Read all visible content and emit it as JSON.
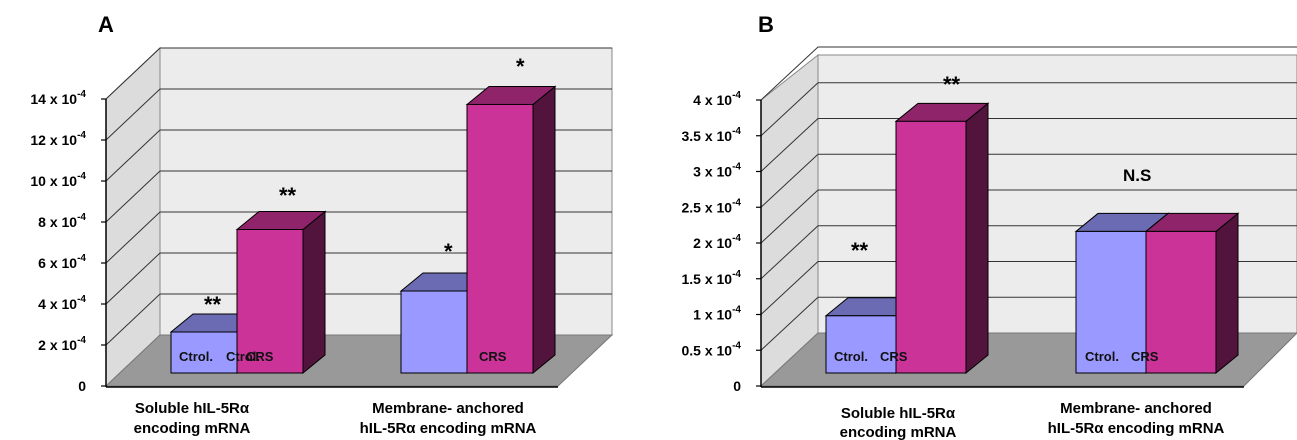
{
  "chart_data": [
    {
      "type": "bar",
      "panel": "A",
      "categories": [
        "Soluble hIL-5Rα encoding mRNA",
        "Membrane- anchored hIL-5Rα encoding mRNA"
      ],
      "category_lines": [
        [
          "Soluble hIL-5Rα",
          "encoding mRNA"
        ],
        [
          "Membrane- anchored",
          "hIL-5Rα encoding mRNA"
        ]
      ],
      "series": [
        {
          "values": [
            0.0002,
            0.0004
          ],
          "color": "#9999ff",
          "bar_labels": [
            "Ctrol.",
            ""
          ]
        },
        {
          "values": [
            0.0007,
            0.00131
          ],
          "color": "#cc3399",
          "bar_labels": [
            "CRS",
            "CRS"
          ]
        }
      ],
      "annotations": [
        "**",
        "*",
        "**",
        "*"
      ],
      "yticks": [
        "0",
        "2 x 10-4",
        "4 x 10-4",
        "6 x 10-4",
        "8 x 10-4",
        "10 x 10-4",
        "12 x 10-4",
        "14 x 10-4"
      ],
      "ylim": [
        0,
        0.0014
      ],
      "grid": true
    },
    {
      "type": "bar",
      "panel": "B",
      "categories": [
        "Soluble hIL-5Rα encoding mRNA",
        "Membrane- anchored hIL-5Rα encoding mRNA"
      ],
      "category_lines": [
        [
          "Soluble hIL-5Rα",
          "encoding mRNA"
        ],
        [
          "Membrane- anchored",
          "hIL-5Rα encoding mRNA"
        ]
      ],
      "series": [
        {
          "values": [
            8e-05,
            0.000198
          ],
          "color": "#9999ff",
          "bar_labels": [
            "Ctrol.",
            "Ctrol."
          ]
        },
        {
          "values": [
            0.000352,
            0.000198
          ],
          "color": "#cc3399",
          "bar_labels": [
            "CRS",
            "CRS"
          ]
        }
      ],
      "annotations": [
        "**",
        "**",
        "N.S"
      ],
      "yticks": [
        "0",
        "0.5 x 10-4",
        "1 x 10-4",
        "1.5 x 10-4",
        "2 x 10-4",
        "2.5 x 10-4",
        "3 x 10-4",
        "3.5 x 10-4",
        "4 x 10-4"
      ],
      "ylim": [
        0,
        0.0004
      ],
      "grid": true
    }
  ]
}
